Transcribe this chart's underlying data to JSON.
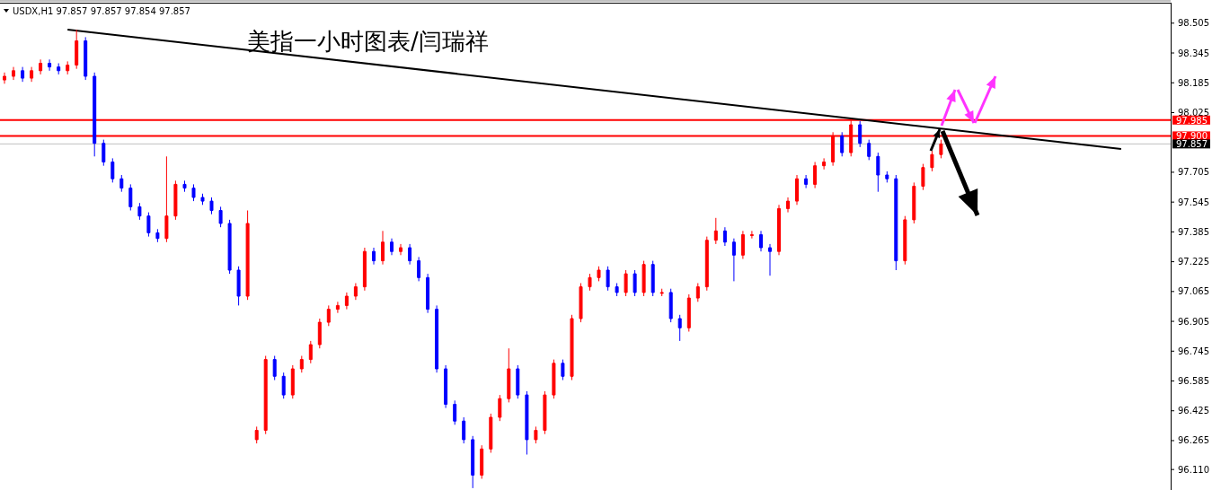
{
  "chart_data": {
    "type": "candlestick",
    "title": "美指一小时图表/闫瑞祥",
    "annotations": [
      "USDX,H1  97.857 97.857 97.854 97.857"
    ],
    "categories": [
      null,
      null,
      null,
      null,
      null,
      null,
      null,
      null,
      null,
      null,
      null,
      null,
      null,
      null,
      null,
      null,
      null,
      null,
      null,
      null,
      null,
      null,
      null,
      null,
      null,
      null,
      null,
      null,
      null,
      null,
      null,
      null,
      null,
      null,
      null,
      null,
      null,
      null,
      null,
      null,
      null,
      null,
      null,
      null,
      null,
      null,
      null,
      null,
      null,
      null,
      null,
      null,
      null,
      null,
      null,
      null,
      null,
      null,
      null,
      null,
      null,
      null,
      null,
      null,
      null,
      null,
      null,
      null,
      null,
      null,
      null,
      null,
      null,
      null,
      null,
      null,
      null,
      null,
      null,
      null,
      null,
      null,
      null,
      null,
      null,
      null,
      null,
      null,
      null,
      null,
      null,
      null,
      null,
      null,
      null,
      null,
      null,
      null,
      null,
      null,
      null,
      null,
      null,
      null,
      null,
      null,
      null,
      null,
      null,
      null,
      null,
      null,
      null,
      null,
      null,
      null,
      null,
      null,
      null,
      null,
      null,
      null,
      null,
      null,
      null,
      null,
      null,
      null,
      null,
      null
    ],
    "ohlc": [
      [
        98.2,
        98.24,
        98.18,
        98.22
      ],
      [
        98.22,
        98.27,
        98.2,
        98.25
      ],
      [
        98.25,
        98.27,
        98.19,
        98.21
      ],
      [
        98.21,
        98.27,
        98.19,
        98.25
      ],
      [
        98.25,
        98.31,
        98.23,
        98.29
      ],
      [
        98.29,
        98.31,
        98.25,
        98.27
      ],
      [
        98.27,
        98.29,
        98.23,
        98.25
      ],
      [
        98.25,
        98.3,
        98.23,
        98.28
      ],
      [
        98.28,
        98.47,
        98.26,
        98.41
      ],
      [
        98.41,
        98.43,
        98.2,
        98.22
      ],
      [
        98.22,
        98.24,
        97.79,
        97.86
      ],
      [
        97.86,
        97.88,
        97.74,
        97.76
      ],
      [
        97.76,
        97.78,
        97.65,
        97.67
      ],
      [
        97.67,
        97.69,
        97.6,
        97.62
      ],
      [
        97.62,
        97.64,
        97.5,
        97.52
      ],
      [
        97.52,
        97.54,
        97.45,
        97.47
      ],
      [
        97.47,
        97.49,
        97.36,
        97.38
      ],
      [
        97.38,
        97.4,
        97.33,
        97.35
      ],
      [
        97.35,
        97.79,
        97.33,
        97.47
      ],
      [
        97.47,
        97.66,
        97.45,
        97.64
      ],
      [
        97.64,
        97.66,
        97.6,
        97.62
      ],
      [
        97.62,
        97.64,
        97.55,
        97.57
      ],
      [
        97.57,
        97.59,
        97.53,
        97.55
      ],
      [
        97.55,
        97.57,
        97.48,
        97.5
      ],
      [
        97.5,
        97.52,
        97.41,
        97.43
      ],
      [
        97.43,
        97.45,
        97.16,
        97.18
      ],
      [
        97.18,
        97.2,
        96.99,
        97.04
      ],
      [
        97.04,
        97.5,
        97.02,
        97.43
      ],
      [
        96.27,
        96.34,
        96.25,
        96.32
      ],
      [
        96.32,
        96.72,
        96.3,
        96.7
      ],
      [
        96.7,
        96.72,
        96.59,
        96.61
      ],
      [
        96.61,
        96.63,
        96.49,
        96.51
      ],
      [
        96.51,
        96.67,
        96.49,
        96.65
      ],
      [
        96.65,
        96.72,
        96.63,
        96.7
      ],
      [
        96.7,
        96.8,
        96.68,
        96.78
      ],
      [
        96.78,
        96.92,
        96.76,
        96.9
      ],
      [
        96.9,
        96.99,
        96.88,
        96.97
      ],
      [
        96.97,
        97.01,
        96.95,
        96.99
      ],
      [
        96.99,
        97.06,
        96.97,
        97.04
      ],
      [
        97.04,
        97.11,
        97.02,
        97.09
      ],
      [
        97.09,
        97.3,
        97.07,
        97.28
      ],
      [
        97.28,
        97.3,
        97.21,
        97.23
      ],
      [
        97.23,
        97.39,
        97.21,
        97.33
      ],
      [
        97.33,
        97.35,
        97.26,
        97.28
      ],
      [
        97.28,
        97.32,
        97.26,
        97.3
      ],
      [
        97.3,
        97.32,
        97.21,
        97.23
      ],
      [
        97.23,
        97.25,
        97.12,
        97.14
      ],
      [
        97.14,
        97.16,
        96.95,
        96.97
      ],
      [
        96.97,
        96.99,
        96.63,
        96.65
      ],
      [
        96.65,
        96.67,
        96.44,
        96.46
      ],
      [
        96.46,
        96.48,
        96.35,
        96.37
      ],
      [
        96.37,
        96.39,
        96.25,
        96.27
      ],
      [
        96.27,
        96.29,
        96.01,
        96.08
      ],
      [
        96.08,
        96.24,
        96.06,
        96.22
      ],
      [
        96.22,
        96.41,
        96.2,
        96.39
      ],
      [
        96.39,
        96.51,
        96.37,
        96.49
      ],
      [
        96.49,
        96.76,
        96.47,
        96.65
      ],
      [
        96.65,
        96.67,
        96.49,
        96.51
      ],
      [
        96.51,
        96.53,
        96.19,
        96.27
      ],
      [
        96.27,
        96.34,
        96.25,
        96.32
      ],
      [
        96.32,
        96.53,
        96.3,
        96.51
      ],
      [
        96.51,
        96.7,
        96.49,
        96.68
      ],
      [
        96.68,
        96.7,
        96.59,
        96.61
      ],
      [
        96.61,
        96.94,
        96.59,
        96.92
      ],
      [
        96.92,
        97.11,
        96.9,
        97.09
      ],
      [
        97.09,
        97.16,
        97.07,
        97.14
      ],
      [
        97.14,
        97.2,
        97.12,
        97.18
      ],
      [
        97.18,
        97.2,
        97.07,
        97.09
      ],
      [
        97.09,
        97.11,
        97.04,
        97.06
      ],
      [
        97.06,
        97.18,
        97.04,
        97.16
      ],
      [
        97.16,
        97.18,
        97.04,
        97.06
      ],
      [
        97.06,
        97.23,
        97.04,
        97.21
      ],
      [
        97.21,
        97.23,
        97.04,
        97.06
      ],
      [
        97.06,
        97.08,
        97.04,
        97.06
      ],
      [
        97.06,
        97.08,
        96.9,
        96.92
      ],
      [
        96.92,
        96.94,
        96.8,
        96.87
      ],
      [
        96.87,
        97.05,
        96.85,
        97.03
      ],
      [
        97.03,
        97.11,
        97.01,
        97.09
      ],
      [
        97.09,
        97.36,
        97.07,
        97.34
      ],
      [
        97.34,
        97.46,
        97.32,
        97.39
      ],
      [
        97.39,
        97.41,
        97.31,
        97.33
      ],
      [
        97.33,
        97.35,
        97.12,
        97.26
      ],
      [
        97.26,
        97.39,
        97.24,
        97.37
      ],
      [
        97.37,
        97.39,
        97.35,
        97.37
      ],
      [
        97.37,
        97.39,
        97.28,
        97.3
      ],
      [
        97.3,
        97.32,
        97.15,
        97.28
      ],
      [
        97.28,
        97.53,
        97.26,
        97.51
      ],
      [
        97.51,
        97.57,
        97.49,
        97.55
      ],
      [
        97.55,
        97.69,
        97.53,
        97.67
      ],
      [
        97.67,
        97.69,
        97.62,
        97.64
      ],
      [
        97.64,
        97.76,
        97.62,
        97.74
      ],
      [
        97.74,
        97.78,
        97.72,
        97.76
      ],
      [
        97.76,
        97.92,
        97.74,
        97.9
      ],
      [
        97.9,
        97.92,
        97.79,
        97.81
      ],
      [
        97.81,
        97.99,
        97.79,
        97.96
      ],
      [
        97.96,
        97.98,
        97.84,
        97.86
      ],
      [
        97.86,
        97.88,
        97.77,
        97.79
      ],
      [
        97.79,
        97.81,
        97.6,
        97.69
      ],
      [
        97.69,
        97.71,
        97.65,
        97.67
      ],
      [
        97.67,
        97.69,
        97.18,
        97.23
      ],
      [
        97.23,
        97.47,
        97.21,
        97.45
      ],
      [
        97.45,
        97.65,
        97.43,
        97.63
      ],
      [
        97.63,
        97.75,
        97.61,
        97.73
      ],
      [
        97.73,
        97.82,
        97.71,
        97.8
      ],
      [
        97.8,
        97.88,
        97.78,
        97.857
      ],
      null,
      null,
      null,
      null,
      null,
      null,
      null,
      null,
      null,
      null,
      null,
      null,
      null,
      null,
      null,
      null,
      null,
      null,
      null,
      null,
      null,
      null,
      null,
      null,
      null
    ],
    "colors": [
      "#ff0000",
      "#ff0000",
      "#0000ff",
      "#ff0000",
      "#ff0000",
      "#0000ff",
      "#0000ff",
      "#ff0000",
      "#ff0000",
      "#0000ff",
      "#0000ff",
      "#0000ff",
      "#0000ff",
      "#0000ff",
      "#0000ff",
      "#0000ff",
      "#0000ff",
      "#0000ff",
      "#ff0000",
      "#ff0000",
      "#0000ff",
      "#0000ff",
      "#0000ff",
      "#0000ff",
      "#0000ff",
      "#0000ff",
      "#0000ff",
      "#ff0000",
      "#ff0000",
      "#ff0000",
      "#0000ff",
      "#0000ff",
      "#ff0000",
      "#ff0000",
      "#ff0000",
      "#ff0000",
      "#ff0000",
      "#ff0000",
      "#ff0000",
      "#ff0000",
      "#ff0000",
      "#0000ff",
      "#ff0000",
      "#0000ff",
      "#ff0000",
      "#0000ff",
      "#0000ff",
      "#0000ff",
      "#0000ff",
      "#0000ff",
      "#0000ff",
      "#0000ff",
      "#0000ff",
      "#ff0000",
      "#ff0000",
      "#ff0000",
      "#ff0000",
      "#0000ff",
      "#0000ff",
      "#ff0000",
      "#ff0000",
      "#ff0000",
      "#0000ff",
      "#ff0000",
      "#ff0000",
      "#ff0000",
      "#ff0000",
      "#0000ff",
      "#0000ff",
      "#ff0000",
      "#0000ff",
      "#ff0000",
      "#0000ff",
      "#ff0000",
      "#0000ff",
      "#0000ff",
      "#ff0000",
      "#ff0000",
      "#ff0000",
      "#ff0000",
      "#0000ff",
      "#0000ff",
      "#ff0000",
      "#ff0000",
      "#0000ff",
      "#0000ff",
      "#ff0000",
      "#ff0000",
      "#ff0000",
      "#0000ff",
      "#ff0000",
      "#ff0000",
      "#ff0000",
      "#0000ff",
      "#ff0000",
      "#0000ff",
      "#0000ff",
      "#0000ff",
      "#0000ff",
      "#0000ff",
      "#ff0000",
      "#ff0000",
      "#ff0000",
      "#ff0000",
      "#ff0000",
      null,
      null,
      null,
      null,
      null,
      null,
      null,
      null,
      null,
      null,
      null,
      null,
      null,
      null,
      null,
      null,
      null,
      null,
      null,
      null,
      null,
      null,
      null,
      null,
      null
    ],
    "series": [
      {
        "type": "line",
        "values": [
          null,
          null,
          null,
          null,
          null,
          null,
          null,
          98.47,
          null,
          null,
          null,
          null,
          null,
          null,
          null,
          null,
          null,
          null,
          null,
          null,
          null,
          null,
          null,
          null,
          null,
          null,
          null,
          null,
          null,
          null,
          null,
          null,
          null,
          null,
          null,
          null,
          null,
          null,
          null,
          null,
          null,
          null,
          null,
          null,
          null,
          null,
          null,
          null,
          null,
          null,
          null,
          null,
          null,
          null,
          null,
          null,
          null,
          null,
          null,
          null,
          null,
          null,
          null,
          null,
          null,
          null,
          null,
          null,
          null,
          null,
          null,
          null,
          null,
          null,
          null,
          null,
          null,
          null,
          null,
          null,
          null,
          null,
          null,
          null,
          null,
          null,
          null,
          null,
          null,
          null,
          null,
          null,
          null,
          null,
          null,
          null,
          null,
          null,
          null,
          null,
          null,
          null,
          null,
          null,
          null,
          null,
          null,
          null,
          null,
          null,
          null,
          null,
          null,
          null,
          null,
          null,
          null,
          null,
          null,
          null,
          null,
          null,
          null,
          null,
          97.83,
          null,
          null,
          null,
          null,
          null
        ],
        "color": "#000000"
      }
    ],
    "ylim": [
      96.0,
      98.61
    ],
    "yticks": [
      98.505,
      98.345,
      98.185,
      98.025,
      97.705,
      97.545,
      97.385,
      97.225,
      97.065,
      96.905,
      96.745,
      96.585,
      96.425,
      96.265,
      {
        "value": 96.11,
        "label": "96.110"
      }
    ],
    "ref_lines": [
      {
        "axis": "y",
        "value": 97.985,
        "label": "97.985",
        "color": "#ff0000"
      },
      {
        "axis": "y",
        "value": 97.9,
        "label": "97.900",
        "color": "#ff0000"
      },
      {
        "axis": "y",
        "value": 97.857,
        "label": "97.857",
        "color": "#c0c0c0"
      }
    ],
    "grid": false
  }
}
